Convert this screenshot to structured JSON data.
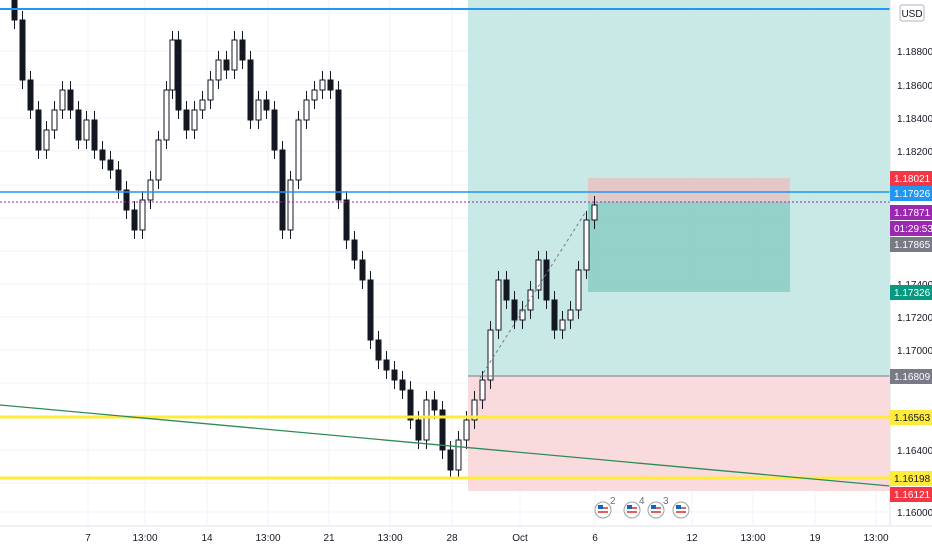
{
  "currency_button": "USD",
  "price_axis": {
    "ticks": [
      "1.18800",
      "1.18600",
      "1.18400",
      "1.18200",
      "1.17400",
      "1.17200",
      "1.17000",
      "1.16400",
      "1.16000"
    ],
    "badges": [
      {
        "text": "1.18021",
        "color": "#f23645"
      },
      {
        "text": "1.17926",
        "color": "#2196f3"
      },
      {
        "text": "1.17871",
        "color": "#9c27b0"
      },
      {
        "text": "01:29:53",
        "color": "#9c27b0"
      },
      {
        "text": "1.17865",
        "color": "#787b86"
      },
      {
        "text": "1.17326",
        "color": "#089981"
      },
      {
        "text": "1.16809",
        "color": "#787b86"
      },
      {
        "text": "1.16563",
        "color": "#ffeb3b",
        "text_color": "#131722"
      },
      {
        "text": "1.16198",
        "color": "#ffeb3b",
        "text_color": "#131722"
      },
      {
        "text": "1.16121",
        "color": "#f23645"
      }
    ]
  },
  "time_axis": {
    "ticks": [
      "7",
      "13:00",
      "14",
      "13:00",
      "21",
      "13:00",
      "28",
      "Oct",
      "6",
      "12",
      "13:00",
      "19",
      "13:00"
    ]
  },
  "events": [
    "2",
    "4",
    "3",
    ""
  ],
  "colors": {
    "up": "#089981",
    "down": "#131722",
    "profit_zone": "#b2dfdb",
    "loss_zone": "#f8d7da",
    "support": "#ffeb3b",
    "resistance": "#2196f3",
    "trendline": "#2e8b57"
  }
}
